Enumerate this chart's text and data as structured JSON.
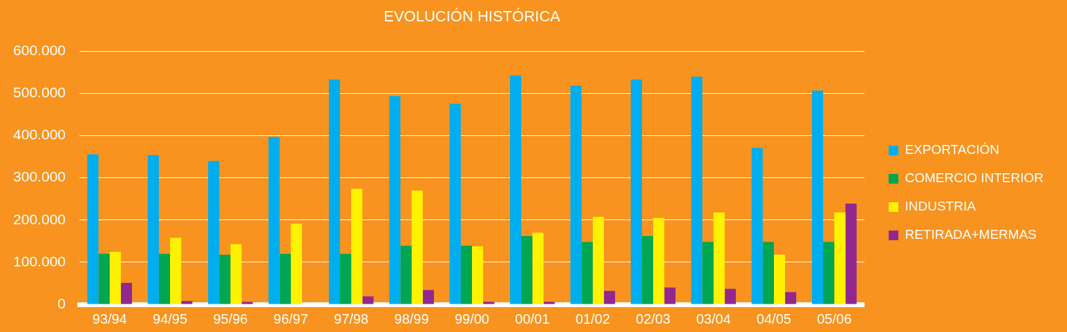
{
  "chart_data": {
    "type": "bar",
    "title": "EVOLUCIÓN HISTÓRICA",
    "categories": [
      "93/94",
      "94/95",
      "95/96",
      "96/97",
      "97/98",
      "98/99",
      "99/00",
      "00/01",
      "01/02",
      "02/03",
      "03/04",
      "04/05",
      "05/06"
    ],
    "series": [
      {
        "name": "EXPORTACIÓN",
        "color": "#00aeef",
        "values": [
          356000,
          354000,
          340000,
          397000,
          533000,
          494000,
          476000,
          543000,
          519000,
          533000,
          540000,
          371000,
          507000
        ]
      },
      {
        "name": "COMERCIO INTERIOR",
        "color": "#00a651",
        "values": [
          120000,
          120000,
          118000,
          120000,
          120000,
          139000,
          139000,
          162000,
          148000,
          162000,
          148000,
          148000,
          148000
        ]
      },
      {
        "name": "INDUSTRIA",
        "color": "#fff200",
        "values": [
          125000,
          158000,
          143000,
          191000,
          274000,
          270000,
          138000,
          170000,
          208000,
          205000,
          218000,
          118000,
          218000
        ]
      },
      {
        "name": "RETIRADA+MERMAS",
        "color": "#92278f",
        "values": [
          51000,
          8000,
          6000,
          0,
          19000,
          34000,
          6000,
          6000,
          32000,
          40000,
          37000,
          29000,
          239000
        ]
      }
    ],
    "ylim": [
      0,
      600000
    ],
    "yticks": [
      0,
      {
        "value": 100000,
        "label": "100.000"
      },
      {
        "value": 200000,
        "label": "200.000"
      },
      {
        "value": 300000,
        "label": "300.000"
      },
      {
        "value": 400000,
        "label": "400.000"
      },
      {
        "value": 500000,
        "label": "500.000"
      },
      {
        "value": 600000,
        "label": "600.000"
      }
    ],
    "grid": "y",
    "legend": "right"
  }
}
